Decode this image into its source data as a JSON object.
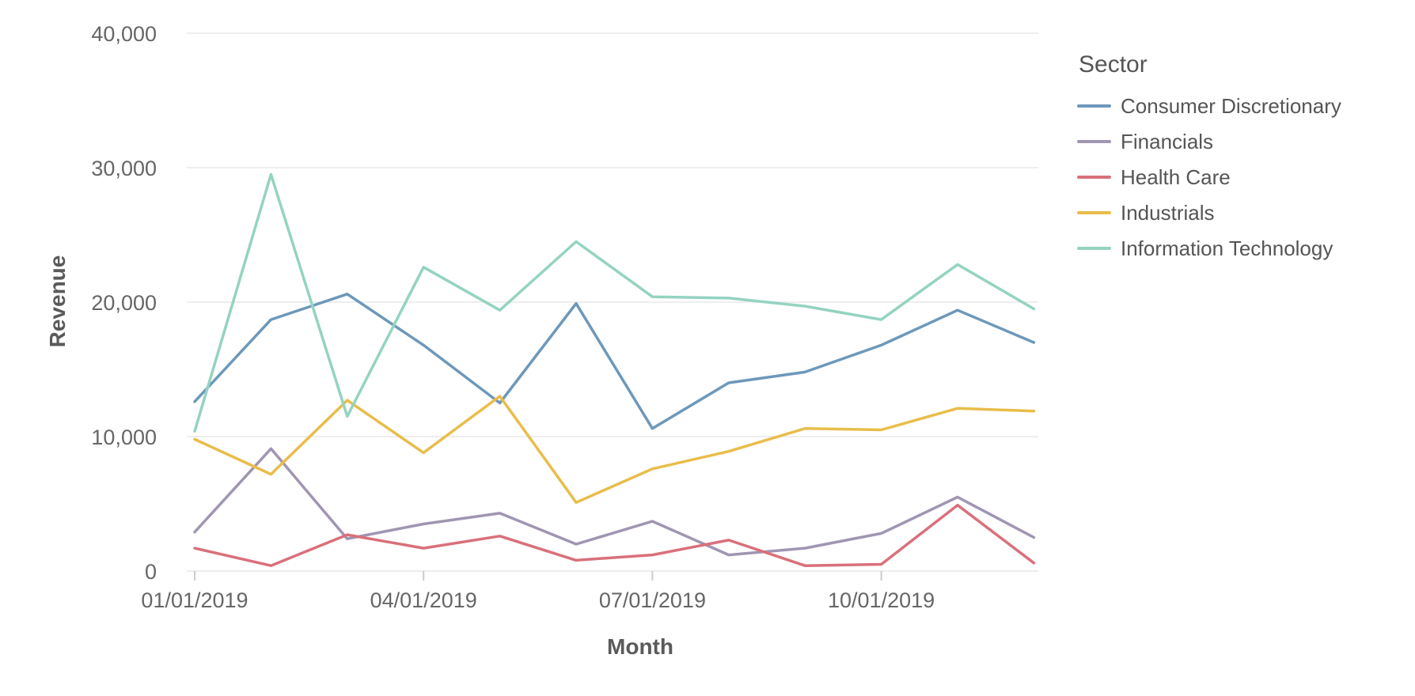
{
  "chart_data": {
    "type": "line",
    "title": "",
    "xlabel": "Month",
    "ylabel": "Revenue",
    "ylim": [
      0,
      40000
    ],
    "y_ticks": [
      0,
      10000,
      20000,
      30000,
      40000
    ],
    "y_tick_labels": [
      "0",
      "10,000",
      "20,000",
      "30,000",
      "40,000"
    ],
    "x": [
      "2019-01",
      "2019-02",
      "2019-03",
      "2019-04",
      "2019-05",
      "2019-06",
      "2019-07",
      "2019-08",
      "2019-09",
      "2019-10",
      "2019-11",
      "2019-12"
    ],
    "x_ticks": [
      {
        "index": 0,
        "label": "01/01/2019"
      },
      {
        "index": 3,
        "label": "04/01/2019"
      },
      {
        "index": 6,
        "label": "07/01/2019"
      },
      {
        "index": 9,
        "label": "10/01/2019"
      }
    ],
    "grid": true,
    "legend": {
      "title": "Sector",
      "position": "right"
    },
    "series": [
      {
        "name": "Consumer Discretionary",
        "color": "#6d98ba",
        "values": [
          12600,
          18700,
          20600,
          16800,
          12500,
          19900,
          10600,
          14000,
          14800,
          16800,
          19400,
          17000
        ]
      },
      {
        "name": "Financials",
        "color": "#a095b2",
        "values": [
          2900,
          9100,
          2400,
          3500,
          4300,
          2000,
          3700,
          1200,
          1700,
          2800,
          5500,
          2500
        ]
      },
      {
        "name": "Health Care",
        "color": "#d9707b",
        "values": [
          1700,
          400,
          2700,
          1700,
          2600,
          800,
          1200,
          2300,
          400,
          500,
          4900,
          600
        ]
      },
      {
        "name": "Industrials",
        "color": "#e8bd4a",
        "values": [
          9800,
          7200,
          12700,
          8800,
          13000,
          5100,
          7600,
          8900,
          10600,
          10500,
          12100,
          11900
        ]
      },
      {
        "name": "Information Technology",
        "color": "#94d3c1",
        "values": [
          10400,
          29500,
          11500,
          22600,
          19400,
          24500,
          20400,
          20300,
          19700,
          18700,
          22800,
          19500
        ]
      }
    ]
  }
}
